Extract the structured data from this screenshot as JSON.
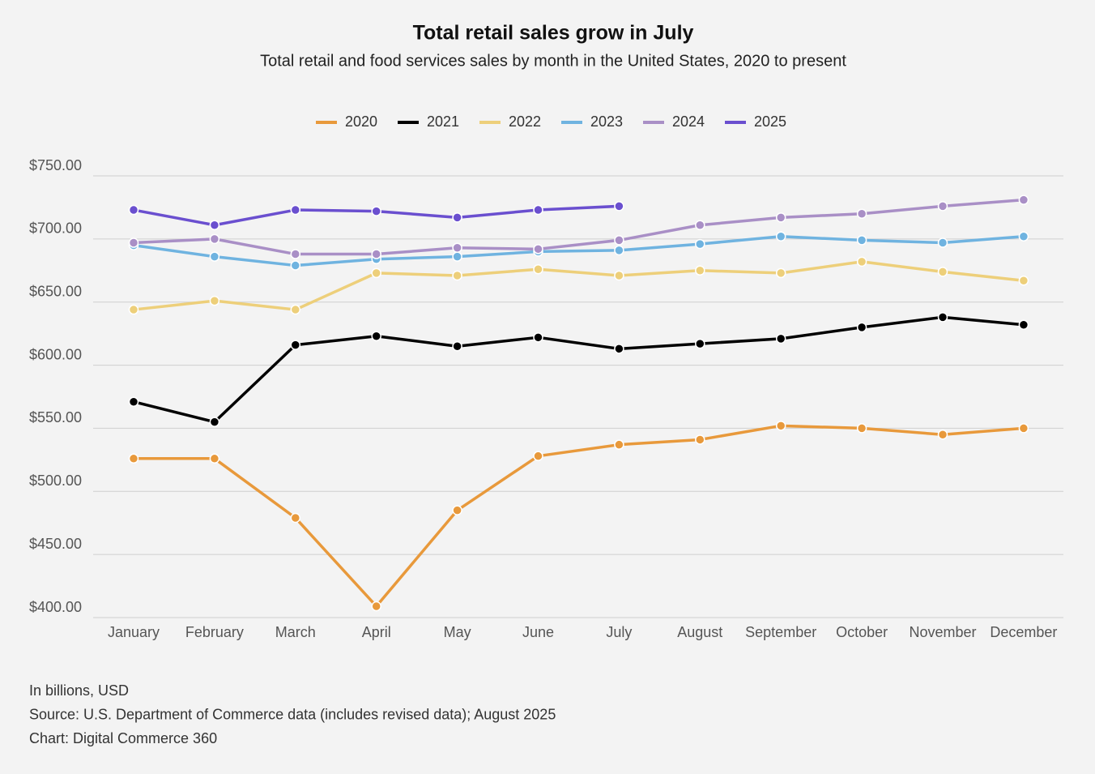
{
  "chart_data": {
    "type": "line",
    "title": "Total retail sales grow in July",
    "subtitle": "Total retail and food services sales by month in the United States, 2020 to present",
    "categories": [
      "January",
      "February",
      "March",
      "April",
      "May",
      "June",
      "July",
      "August",
      "September",
      "October",
      "November",
      "December"
    ],
    "series": [
      {
        "name": "2020",
        "color": "#e8993b",
        "values": [
          526,
          526,
          479,
          409,
          485,
          528,
          537,
          541,
          552,
          550,
          545,
          550
        ]
      },
      {
        "name": "2021",
        "color": "#000000",
        "values": [
          571,
          555,
          616,
          623,
          615,
          622,
          613,
          617,
          621,
          630,
          638,
          632
        ]
      },
      {
        "name": "2022",
        "color": "#edcf7a",
        "values": [
          644,
          651,
          644,
          673,
          671,
          676,
          671,
          675,
          673,
          682,
          674,
          667
        ]
      },
      {
        "name": "2023",
        "color": "#6fb3e0",
        "values": [
          695,
          686,
          679,
          684,
          686,
          690,
          691,
          696,
          702,
          699,
          697,
          702
        ]
      },
      {
        "name": "2024",
        "color": "#a98fc6",
        "values": [
          697,
          700,
          688,
          688,
          693,
          692,
          699,
          711,
          717,
          720,
          726,
          731
        ]
      },
      {
        "name": "2025",
        "color": "#6a4fcf",
        "values": [
          723,
          711,
          723,
          722,
          717,
          723,
          726,
          null,
          null,
          null,
          null,
          null
        ]
      }
    ],
    "ylim": [
      400,
      750
    ],
    "yticks": [
      {
        "value": 400,
        "label": "$400.00"
      },
      {
        "value": 450,
        "label": "$450.00"
      },
      {
        "value": 500,
        "label": "$500.00"
      },
      {
        "value": 550,
        "label": "$550.00"
      },
      {
        "value": 600,
        "label": "$600.00"
      },
      {
        "value": 650,
        "label": "$650.00"
      },
      {
        "value": 700,
        "label": "$700.00"
      },
      {
        "value": 750,
        "label": "$750.00"
      }
    ],
    "grid": true,
    "legend": "top",
    "notes": [
      "In billions, USD",
      "Source: U.S. Department of Commerce data (includes revised data); August 2025",
      "Chart: Digital Commerce 360"
    ]
  }
}
